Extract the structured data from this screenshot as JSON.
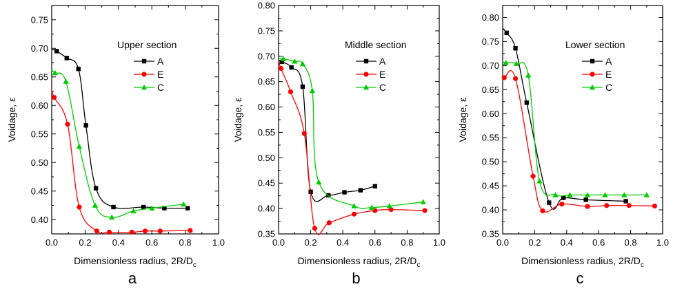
{
  "chart_data": [
    {
      "type": "scatter",
      "panel_label": "a",
      "annotation": "Upper section",
      "xlabel": "Dimensionless radius, 2R/D",
      "xlabel_sub": "c",
      "ylabel": "Voidage, ε",
      "xlim": [
        0.0,
        1.0
      ],
      "ylim": [
        0.375,
        0.775
      ],
      "xticks": [
        0.0,
        0.2,
        0.4,
        0.6,
        0.8,
        1.0
      ],
      "xtick_labels": [
        "0.0",
        "0.2",
        "0.4",
        "0.6",
        "0.8",
        "1.0"
      ],
      "yticks": [
        0.4,
        0.45,
        0.5,
        0.55,
        0.6,
        0.65,
        0.7,
        0.75
      ],
      "ytick_labels": [
        "0.40",
        "0.45",
        "0.50",
        "0.55",
        "0.60",
        "0.65",
        "0.70",
        "0.75"
      ],
      "legend_position": "upper-right",
      "series": [
        {
          "name": "A",
          "color": "#000000",
          "marker": "square",
          "x": [
            0.03,
            0.09,
            0.16,
            0.205,
            0.265,
            0.37,
            0.55,
            0.675,
            0.815
          ],
          "y": [
            0.695,
            0.683,
            0.664,
            0.565,
            0.455,
            0.422,
            0.422,
            0.42,
            0.42
          ]
        },
        {
          "name": "E",
          "color": "#ff0000",
          "marker": "circle",
          "x": [
            0.015,
            0.095,
            0.165,
            0.27,
            0.345,
            0.48,
            0.56,
            0.65,
            0.83
          ],
          "y": [
            0.614,
            0.567,
            0.422,
            0.38,
            0.378,
            0.378,
            0.38,
            0.38,
            0.381
          ]
        },
        {
          "name": "C",
          "color": "#00cc00",
          "marker": "triangle",
          "x": [
            0.02,
            0.085,
            0.165,
            0.26,
            0.36,
            0.49,
            0.6,
            0.79
          ],
          "y": [
            0.657,
            0.642,
            0.528,
            0.425,
            0.404,
            0.415,
            0.42,
            0.427
          ]
        }
      ]
    },
    {
      "type": "scatter",
      "panel_label": "b",
      "annotation": "Middle  section",
      "xlabel": "Dimensionless radius, 2R/D",
      "xlabel_sub": "c",
      "ylabel": "Voidage, ε",
      "xlim": [
        0.0,
        1.0
      ],
      "ylim": [
        0.35,
        0.8
      ],
      "xticks": [
        0.0,
        0.2,
        0.4,
        0.6,
        0.8,
        1.0
      ],
      "xtick_labels": [
        "0.0",
        "0.2",
        "0.4",
        "0.6",
        "0.8",
        "1.0"
      ],
      "yticks": [
        0.35,
        0.4,
        0.45,
        0.5,
        0.55,
        0.6,
        0.65,
        0.7,
        0.75,
        0.8
      ],
      "ytick_labels": [
        "0.35",
        "0.40",
        "0.45",
        "0.50",
        "0.55",
        "0.60",
        "0.65",
        "0.70",
        "0.75",
        "0.80"
      ],
      "legend_position": "upper-right",
      "series": [
        {
          "name": "A",
          "color": "#000000",
          "marker": "square",
          "x": [
            0.02,
            0.08,
            0.15,
            0.2,
            0.31,
            0.41,
            0.51,
            0.6
          ],
          "y": [
            0.689,
            0.678,
            0.64,
            0.433,
            0.426,
            0.432,
            0.436,
            0.444
          ]
        },
        {
          "name": "E",
          "color": "#ff0000",
          "marker": "circle",
          "x": [
            0.015,
            0.075,
            0.16,
            0.225,
            0.315,
            0.47,
            0.6,
            0.7,
            0.91
          ],
          "y": [
            0.676,
            0.63,
            0.548,
            0.361,
            0.372,
            0.389,
            0.396,
            0.398,
            0.396
          ]
        },
        {
          "name": "C",
          "color": "#00cc00",
          "marker": "triangle",
          "x": [
            0.03,
            0.1,
            0.15,
            0.21,
            0.25,
            0.47,
            0.58,
            0.69,
            0.9
          ],
          "y": [
            0.695,
            0.69,
            0.685,
            0.632,
            0.452,
            0.405,
            0.402,
            0.405,
            0.413
          ]
        }
      ]
    },
    {
      "type": "scatter",
      "panel_label": "c",
      "annotation": "Lower section",
      "xlabel": "Dimensionless radius, 2R/D",
      "xlabel_sub": "c",
      "ylabel": "Voidage, ε",
      "xlim": [
        0.0,
        1.0
      ],
      "ylim": [
        0.35,
        0.825
      ],
      "xticks": [
        0.0,
        0.2,
        0.4,
        0.6,
        0.8,
        1.0
      ],
      "xtick_labels": [
        "0.0",
        "0.2",
        "0.4",
        "0.6",
        "0.8",
        "1.0"
      ],
      "yticks": [
        0.35,
        0.4,
        0.45,
        0.5,
        0.55,
        0.6,
        0.65,
        0.7,
        0.75,
        0.8
      ],
      "ytick_labels": [
        "0.35",
        "0.40",
        "0.45",
        "0.50",
        "0.55",
        "0.60",
        "0.65",
        "0.70",
        "0.75",
        "0.80"
      ],
      "legend_position": "upper-right",
      "series": [
        {
          "name": "A",
          "color": "#000000",
          "marker": "square",
          "x": [
            0.025,
            0.08,
            0.15,
            0.29,
            0.38,
            0.52,
            0.77
          ],
          "y": [
            0.768,
            0.736,
            0.623,
            0.415,
            0.425,
            0.421,
            0.418
          ]
        },
        {
          "name": "E",
          "color": "#ff0000",
          "marker": "circle",
          "x": [
            0.01,
            0.08,
            0.19,
            0.25,
            0.37,
            0.53,
            0.65,
            0.79,
            0.95
          ],
          "y": [
            0.675,
            0.673,
            0.47,
            0.398,
            0.412,
            0.407,
            0.409,
            0.409,
            0.408
          ]
        },
        {
          "name": "C",
          "color": "#00cc00",
          "marker": "triangle",
          "x": [
            0.02,
            0.085,
            0.16,
            0.23,
            0.33,
            0.42,
            0.53,
            0.64,
            0.76,
            0.9
          ],
          "y": [
            0.706,
            0.704,
            0.68,
            0.46,
            0.431,
            0.431,
            0.431,
            0.431,
            0.431,
            0.431
          ]
        }
      ]
    }
  ]
}
